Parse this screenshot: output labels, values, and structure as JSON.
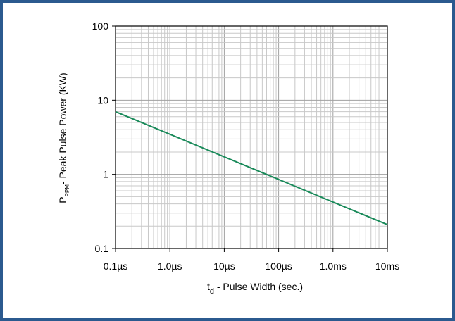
{
  "chart_data": {
    "type": "line",
    "x_scale": "log",
    "y_scale": "log",
    "xlim_seconds": [
      1e-07,
      0.01
    ],
    "ylim": [
      0.1,
      100
    ],
    "x_ticks": [
      {
        "value_seconds": 1e-07,
        "label": "0.1µs"
      },
      {
        "value_seconds": 1e-06,
        "label": "1.0µs"
      },
      {
        "value_seconds": 1e-05,
        "label": "10µs"
      },
      {
        "value_seconds": 0.0001,
        "label": "100µs"
      },
      {
        "value_seconds": 0.001,
        "label": "1.0ms"
      },
      {
        "value_seconds": 0.01,
        "label": "10ms"
      }
    ],
    "y_ticks": [
      {
        "value": 0.1,
        "label": "0.1"
      },
      {
        "value": 1,
        "label": "1"
      },
      {
        "value": 10,
        "label": "10"
      },
      {
        "value": 100,
        "label": "100"
      }
    ],
    "xlabel": {
      "main": "t",
      "sub": "d",
      "rest": " - Pulse Width (sec.)"
    },
    "ylabel": {
      "main": "P",
      "sub": "PPM",
      "rest": "- Peak Pulse Power (KW)"
    },
    "grid": true,
    "series": [
      {
        "color": "#1a8a5a",
        "points": [
          {
            "x_seconds": 1e-07,
            "y": 7.0
          },
          {
            "x_seconds": 0.01,
            "y": 0.21
          }
        ]
      }
    ]
  },
  "colors": {
    "border": "#2b5a8f",
    "grid": "#c8c8c8",
    "axes": "#000000",
    "line": "#1a8a5a"
  }
}
